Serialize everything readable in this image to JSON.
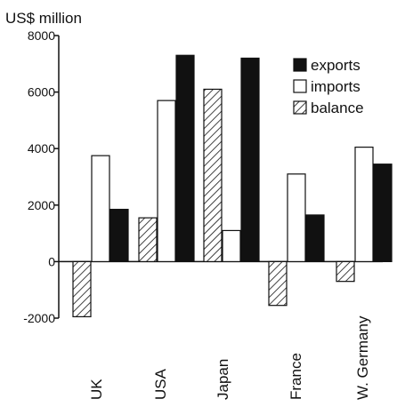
{
  "chart_data": {
    "type": "bar",
    "unit_label": "US$ million",
    "categories": [
      "UK",
      "USA",
      "Japan",
      "France",
      "W. Germany"
    ],
    "series": [
      {
        "name": "balance",
        "values": [
          -1950,
          1550,
          6100,
          -1550,
          -700
        ]
      },
      {
        "name": "imports",
        "values": [
          3750,
          5700,
          1100,
          3100,
          4050
        ]
      },
      {
        "name": "exports",
        "values": [
          1850,
          7300,
          7200,
          1650,
          3450
        ]
      }
    ],
    "ylim": [
      -2000,
      8000
    ],
    "yticks": [
      "-2000",
      "0",
      "2000",
      "4000",
      "6000",
      "8000"
    ],
    "legend": [
      {
        "label": "exports",
        "series": "exports"
      },
      {
        "label": "imports",
        "series": "imports"
      },
      {
        "label": "balance",
        "series": "balance"
      }
    ],
    "legend_position": "top-right",
    "colors": {
      "exports": "#111111",
      "imports": "#ffffff",
      "balance": "hatched"
    },
    "grid": false
  }
}
